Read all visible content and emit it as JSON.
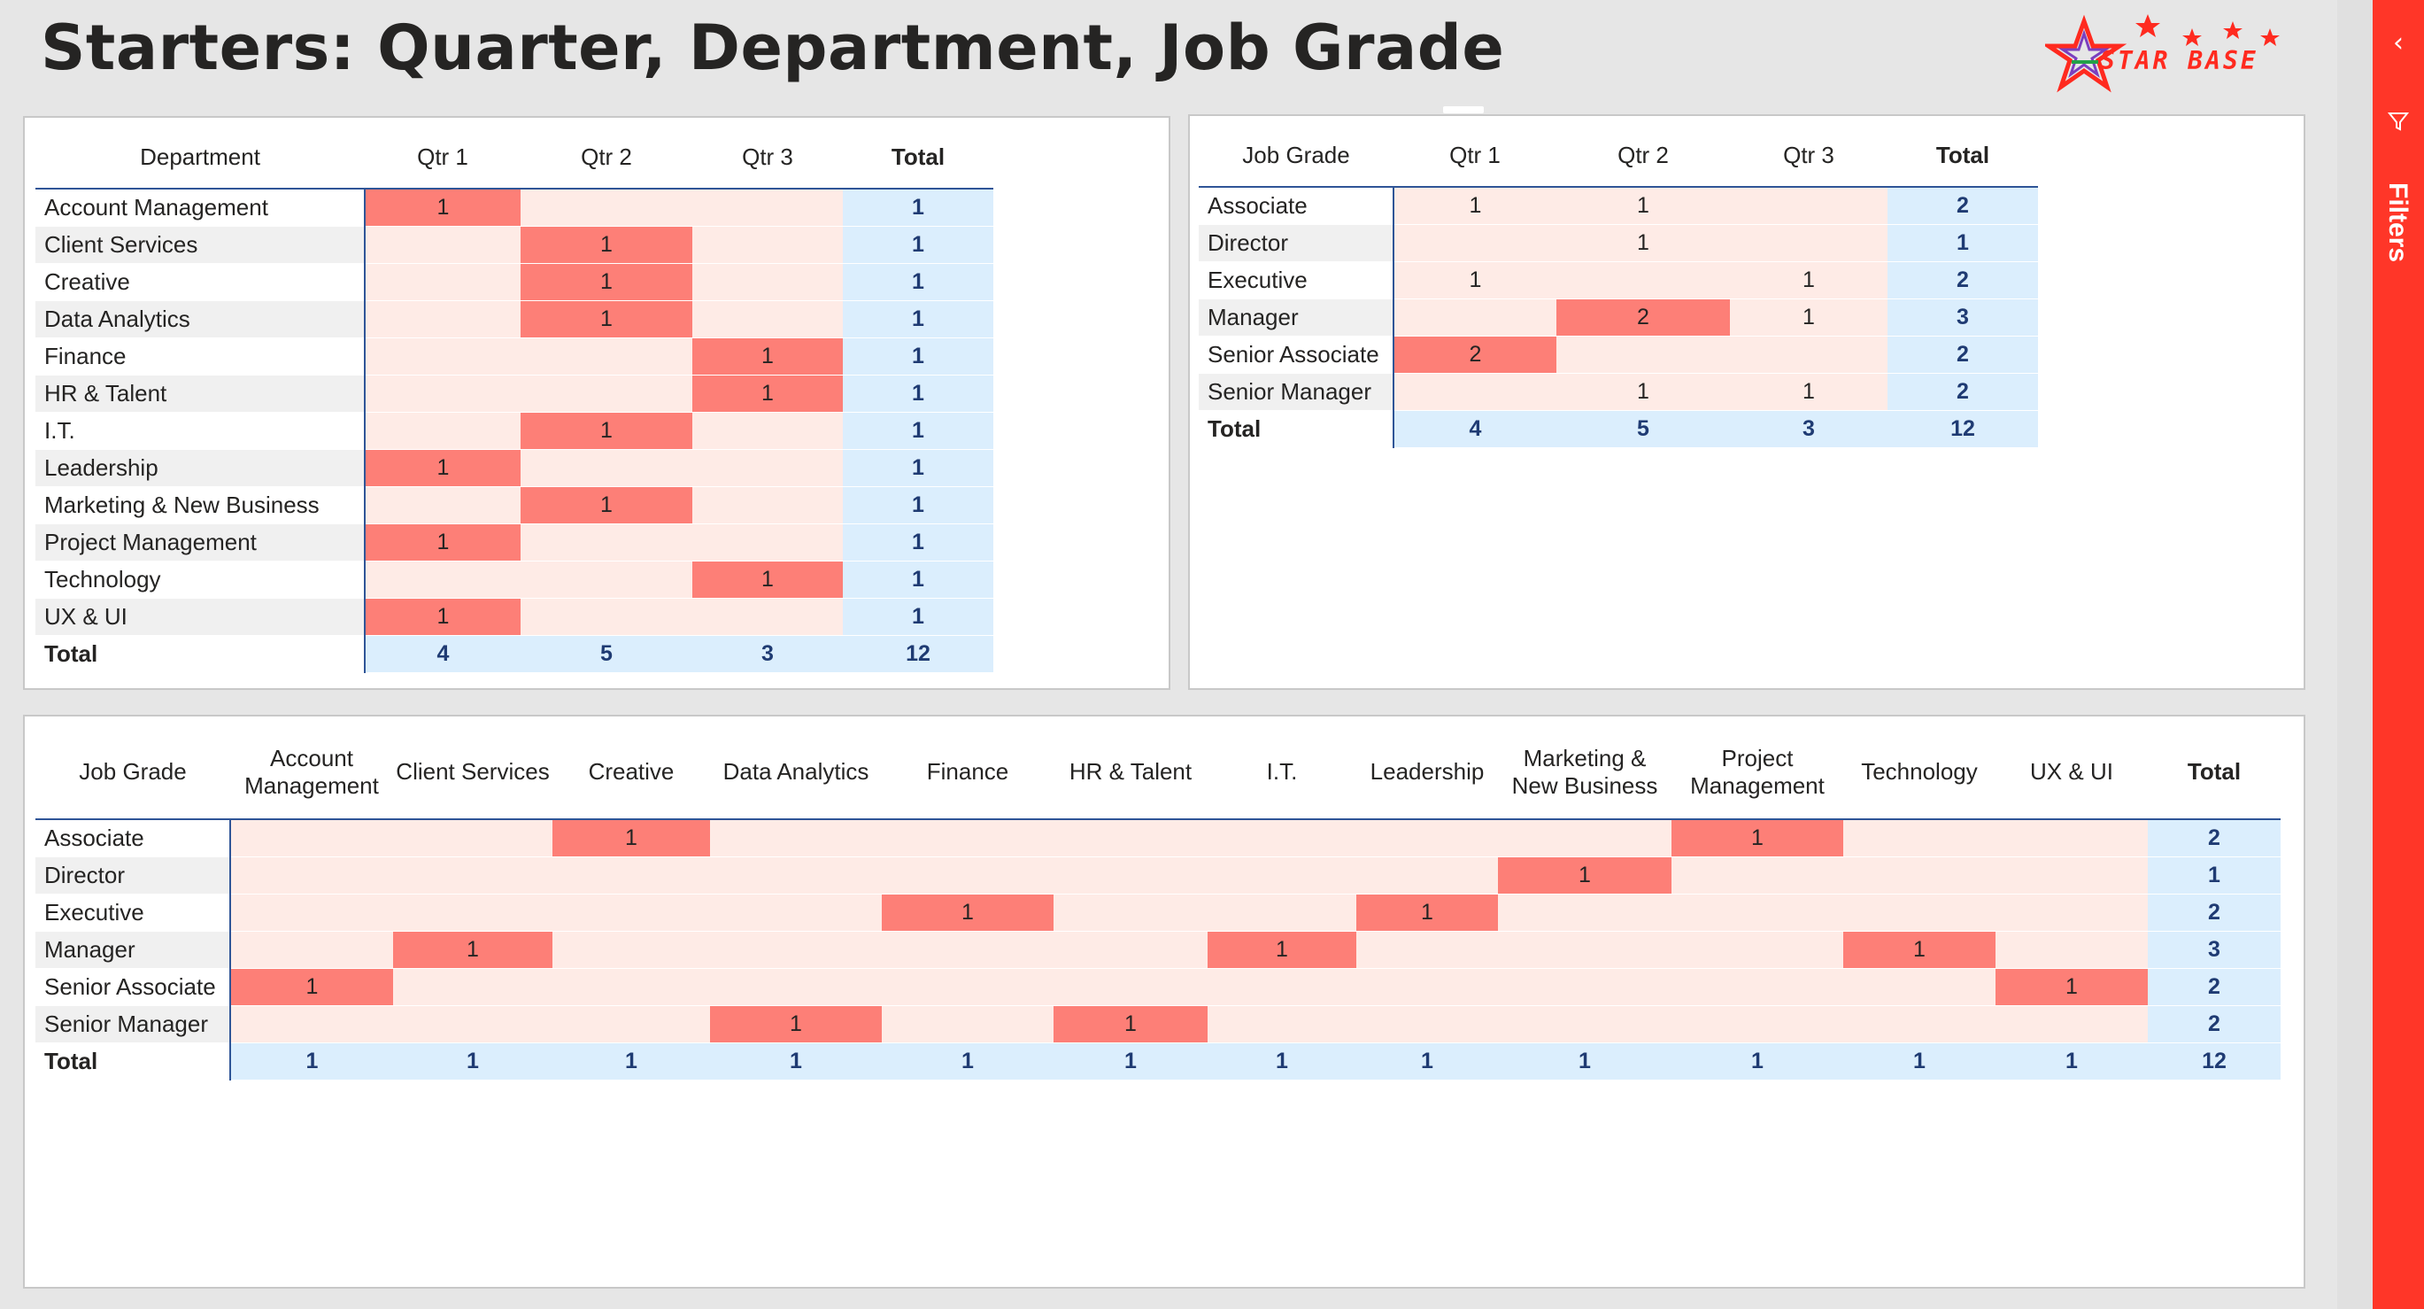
{
  "page": {
    "title": "Starters: Quarter, Department, Job Grade",
    "logo_text": "STAR BASE",
    "filters_label": "Filters",
    "collapse_glyph": "‹"
  },
  "colors": {
    "hot": "#fd7f77",
    "cell": "#feebe6",
    "total": "#dbeefd",
    "total_text": "#1f3b73",
    "filter_pane": "#ff3628"
  },
  "dept_quarter": {
    "headers": [
      "Department",
      "Qtr 1",
      "Qtr 2",
      "Qtr 3",
      "Total"
    ],
    "rows": [
      {
        "label": "Account Management",
        "values": [
          "1",
          "",
          ""
        ],
        "total": "1"
      },
      {
        "label": "Client Services",
        "values": [
          "",
          "1",
          ""
        ],
        "total": "1"
      },
      {
        "label": "Creative",
        "values": [
          "",
          "1",
          ""
        ],
        "total": "1"
      },
      {
        "label": "Data Analytics",
        "values": [
          "",
          "1",
          ""
        ],
        "total": "1"
      },
      {
        "label": "Finance",
        "values": [
          "",
          "",
          "1"
        ],
        "total": "1"
      },
      {
        "label": "HR & Talent",
        "values": [
          "",
          "",
          "1"
        ],
        "total": "1"
      },
      {
        "label": "I.T.",
        "values": [
          "",
          "1",
          ""
        ],
        "total": "1"
      },
      {
        "label": "Leadership",
        "values": [
          "1",
          "",
          ""
        ],
        "total": "1"
      },
      {
        "label": "Marketing & New Business",
        "values": [
          "",
          "1",
          ""
        ],
        "total": "1"
      },
      {
        "label": "Project Management",
        "values": [
          "1",
          "",
          ""
        ],
        "total": "1"
      },
      {
        "label": "Technology",
        "values": [
          "",
          "",
          "1"
        ],
        "total": "1"
      },
      {
        "label": "UX & UI",
        "values": [
          "1",
          "",
          ""
        ],
        "total": "1"
      }
    ],
    "total_row": {
      "label": "Total",
      "values": [
        "4",
        "5",
        "3"
      ],
      "total": "12"
    }
  },
  "grade_quarter": {
    "headers": [
      "Job Grade",
      "Qtr 1",
      "Qtr 2",
      "Qtr 3",
      "Total"
    ],
    "rows": [
      {
        "label": "Associate",
        "values": [
          "1",
          "1",
          ""
        ],
        "total": "2"
      },
      {
        "label": "Director",
        "values": [
          "",
          "1",
          ""
        ],
        "total": "1"
      },
      {
        "label": "Executive",
        "values": [
          "1",
          "",
          "1"
        ],
        "total": "2"
      },
      {
        "label": "Manager",
        "values": [
          "",
          "2",
          "1"
        ],
        "total": "3"
      },
      {
        "label": "Senior Associate",
        "values": [
          "2",
          "",
          ""
        ],
        "total": "2"
      },
      {
        "label": "Senior Manager",
        "values": [
          "",
          "1",
          "1"
        ],
        "total": "2"
      }
    ],
    "total_row": {
      "label": "Total",
      "values": [
        "4",
        "5",
        "3"
      ],
      "total": "12"
    }
  },
  "grade_dept": {
    "headers": [
      "Job Grade",
      "Account Management",
      "Client Services",
      "Creative",
      "Data Analytics",
      "Finance",
      "HR & Talent",
      "I.T.",
      "Leadership",
      "Marketing & New Business",
      "Project Management",
      "Technology",
      "UX & UI",
      "Total"
    ],
    "rows": [
      {
        "label": "Associate",
        "values": [
          "",
          "",
          "1",
          "",
          "",
          "",
          "",
          "",
          "",
          "1",
          "",
          ""
        ],
        "total": "2"
      },
      {
        "label": "Director",
        "values": [
          "",
          "",
          "",
          "",
          "",
          "",
          "",
          "",
          "1",
          "",
          "",
          ""
        ],
        "total": "1"
      },
      {
        "label": "Executive",
        "values": [
          "",
          "",
          "",
          "",
          "1",
          "",
          "",
          "1",
          "",
          "",
          "",
          ""
        ],
        "total": "2"
      },
      {
        "label": "Manager",
        "values": [
          "",
          "1",
          "",
          "",
          "",
          "",
          "1",
          "",
          "",
          "",
          "1",
          ""
        ],
        "total": "3"
      },
      {
        "label": "Senior Associate",
        "values": [
          "1",
          "",
          "",
          "",
          "",
          "",
          "",
          "",
          "",
          "",
          "",
          "1"
        ],
        "total": "2"
      },
      {
        "label": "Senior Manager",
        "values": [
          "",
          "",
          "",
          "1",
          "",
          "1",
          "",
          "",
          "",
          "",
          "",
          ""
        ],
        "total": "2"
      }
    ],
    "total_row": {
      "label": "Total",
      "values": [
        "1",
        "1",
        "1",
        "1",
        "1",
        "1",
        "1",
        "1",
        "1",
        "1",
        "1",
        "1"
      ],
      "total": "12"
    }
  },
  "hot_cells": {
    "dept_quarter": [
      [
        0,
        0
      ],
      [
        1,
        1
      ],
      [
        2,
        1
      ],
      [
        3,
        1
      ],
      [
        4,
        2
      ],
      [
        5,
        2
      ],
      [
        6,
        1
      ],
      [
        7,
        0
      ],
      [
        8,
        1
      ],
      [
        9,
        0
      ],
      [
        10,
        2
      ],
      [
        11,
        0
      ]
    ],
    "grade_quarter": [
      [
        3,
        1
      ],
      [
        4,
        0
      ]
    ],
    "grade_dept": [
      [
        0,
        2
      ],
      [
        0,
        9
      ],
      [
        1,
        8
      ],
      [
        2,
        4
      ],
      [
        2,
        7
      ],
      [
        3,
        1
      ],
      [
        3,
        6
      ],
      [
        3,
        10
      ],
      [
        4,
        0
      ],
      [
        4,
        11
      ],
      [
        5,
        3
      ],
      [
        5,
        5
      ]
    ]
  }
}
